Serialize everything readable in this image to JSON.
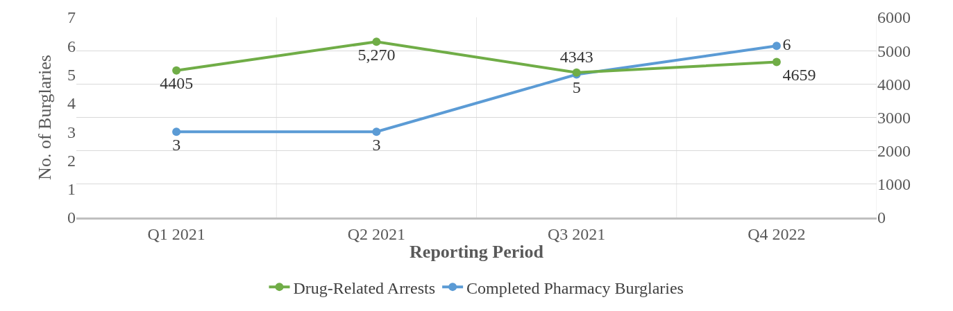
{
  "chart_data": {
    "type": "line",
    "xlabel": "Reporting Period",
    "ylabel": "No. of Burglaries",
    "categories": [
      "Q1 2021",
      "Q2 2021",
      "Q3 2021",
      "Q4 2022"
    ],
    "series": [
      {
        "name": "Drug-Related Arrests",
        "color": "#70ad47",
        "axis": "y2",
        "values": [
          4405,
          5270,
          4343,
          4659
        ],
        "value_labels": [
          "4405",
          "5,270",
          "4343",
          "4659"
        ]
      },
      {
        "name": "Completed Pharmacy Burglaries",
        "color": "#5b9bd5",
        "values": [
          3,
          3,
          5,
          6
        ],
        "value_labels": [
          "3",
          "3",
          "5",
          "6"
        ]
      }
    ],
    "ylim": [
      0,
      7
    ],
    "yticks": [
      0,
      1,
      2,
      3,
      4,
      5,
      6,
      7
    ],
    "y2lim": [
      0,
      6000
    ],
    "y2ticks": [
      0,
      1000,
      2000,
      3000,
      4000,
      5000,
      6000
    ],
    "grid": true,
    "legend": "bottom",
    "marker": "circle",
    "line_style": "solid"
  }
}
